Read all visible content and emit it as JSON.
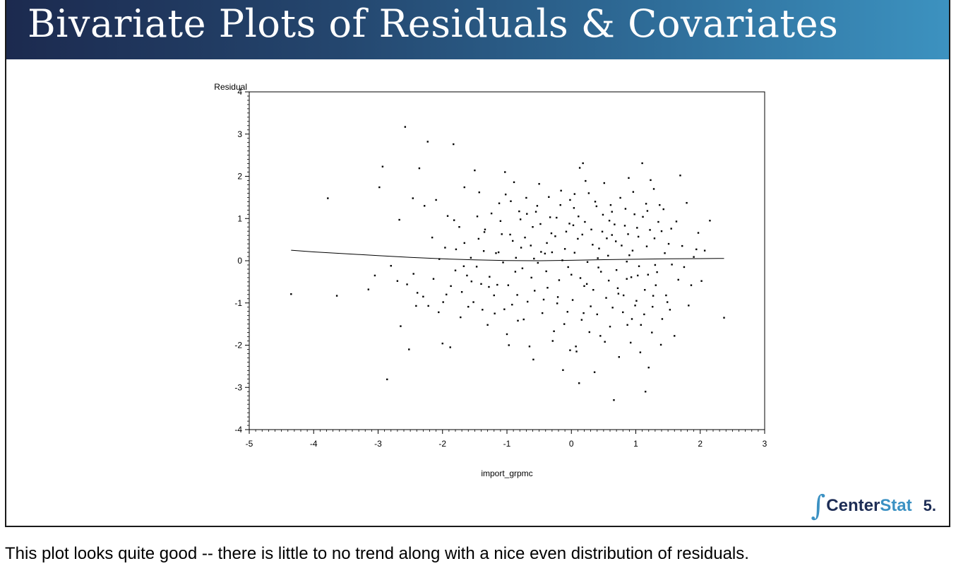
{
  "slide": {
    "title": "Bivariate Plots of Residuals & Covariates",
    "logo": {
      "prefix": "∫",
      "part1": "Center",
      "part2": "Stat"
    },
    "page_number": "5.",
    "caption": "This plot looks quite good -- there is little to no trend along with a nice even distribution of residuals.",
    "colors": {
      "title_gradient_start": "#1c2a4f",
      "title_gradient_end": "#3c92c0",
      "logo_dark": "#1d2d55",
      "logo_light": "#3b91c3"
    }
  },
  "chart_data": {
    "type": "scatter",
    "xlabel": "import_grpmc",
    "ylabel": "Residual",
    "xlim": [
      -5,
      3
    ],
    "ylim": [
      -4,
      4
    ],
    "xticks": [
      -5,
      -4,
      -3,
      -2,
      -1,
      0,
      1,
      2,
      3
    ],
    "yticks": [
      -4,
      -3,
      -2,
      -1,
      0,
      1,
      2,
      3,
      4
    ],
    "grid": false,
    "legend": "none",
    "points": [
      [
        -4.35,
        -0.79
      ],
      [
        -3.78,
        1.48
      ],
      [
        -3.64,
        -0.83
      ],
      [
        -3.15,
        -0.68
      ],
      [
        -2.98,
        1.74
      ],
      [
        -2.93,
        2.23
      ],
      [
        -2.86,
        -2.81
      ],
      [
        -2.67,
        0.97
      ],
      [
        -2.65,
        -1.55
      ],
      [
        -2.58,
        3.17
      ],
      [
        -2.52,
        -2.1
      ],
      [
        -2.46,
        1.48
      ],
      [
        -2.39,
        -0.76
      ],
      [
        -2.36,
        2.19
      ],
      [
        -2.23,
        2.82
      ],
      [
        -2.16,
        0.55
      ],
      [
        -2.1,
        1.44
      ],
      [
        -2.06,
        -1.22
      ],
      [
        -2.0,
        -1.96
      ],
      [
        -1.96,
        0.31
      ],
      [
        -1.94,
        -0.8
      ],
      [
        -1.88,
        -2.05
      ],
      [
        -1.83,
        2.76
      ],
      [
        -1.8,
        -0.23
      ],
      [
        -1.74,
        0.8
      ],
      [
        -1.7,
        -0.74
      ],
      [
        -1.66,
        1.74
      ],
      [
        -1.6,
        -1.09
      ],
      [
        -1.55,
        -0.49
      ],
      [
        -1.5,
        2.14
      ],
      [
        -1.46,
        1.05
      ],
      [
        -1.43,
        1.62
      ],
      [
        -1.4,
        -0.55
      ],
      [
        -1.34,
        0.74
      ],
      [
        -1.3,
        -1.52
      ],
      [
        -1.2,
        -0.82
      ],
      [
        -1.17,
        0.18
      ],
      [
        -1.12,
        1.36
      ],
      [
        -1.08,
        0.63
      ],
      [
        -1.03,
        2.1
      ],
      [
        -1.0,
        -1.74
      ],
      [
        -0.97,
        -2.0
      ],
      [
        -0.94,
        1.41
      ],
      [
        -0.91,
        0.47
      ],
      [
        -0.87,
        -0.26
      ],
      [
        -0.84,
        -0.81
      ],
      [
        -0.81,
        1.17
      ],
      [
        -0.78,
        0.31
      ],
      [
        -0.74,
        -1.39
      ],
      [
        -0.7,
        1.49
      ],
      [
        -0.65,
        -2.03
      ],
      [
        -0.6,
        0.8
      ],
      [
        -0.57,
        -0.71
      ],
      [
        -0.53,
        1.3
      ],
      [
        -0.5,
        1.82
      ],
      [
        -0.47,
        0.21
      ],
      [
        -0.43,
        -0.92
      ],
      [
        -0.39,
        -0.25
      ],
      [
        -0.35,
        1.51
      ],
      [
        -0.31,
        0.65
      ],
      [
        -0.27,
        -1.67
      ],
      [
        -0.23,
        1.02
      ],
      [
        -0.19,
        -0.46
      ],
      [
        -0.16,
        1.66
      ],
      [
        -0.13,
        -2.59
      ],
      [
        -0.1,
        0.28
      ],
      [
        -0.06,
        -1.21
      ],
      [
        -0.03,
        0.88
      ],
      [
        0.0,
        -0.33
      ],
      [
        0.04,
        1.25
      ],
      [
        0.08,
        -2.15
      ],
      [
        0.1,
        0.52
      ],
      [
        0.13,
        2.2
      ],
      [
        0.16,
        -1.4
      ],
      [
        0.18,
        2.31
      ],
      [
        0.21,
        0.92
      ],
      [
        0.24,
        -0.55
      ],
      [
        0.27,
        1.6
      ],
      [
        0.3,
        -1.08
      ],
      [
        0.33,
        0.38
      ],
      [
        0.36,
        -2.64
      ],
      [
        0.39,
        1.29
      ],
      [
        0.42,
        -0.16
      ],
      [
        0.45,
        -1.78
      ],
      [
        0.48,
        0.69
      ],
      [
        0.51,
        1.84
      ],
      [
        0.54,
        -0.88
      ],
      [
        0.57,
        0.12
      ],
      [
        0.6,
        -1.56
      ],
      [
        0.63,
        1.16
      ],
      [
        0.66,
        -3.3
      ],
      [
        0.69,
        0.46
      ],
      [
        0.72,
        -0.65
      ],
      [
        0.76,
        1.49
      ],
      [
        0.8,
        -1.22
      ],
      [
        0.83,
        0.83
      ],
      [
        0.86,
        -0.43
      ],
      [
        0.89,
        1.96
      ],
      [
        0.92,
        -1.94
      ],
      [
        0.95,
        0.24
      ],
      [
        0.98,
        1.1
      ],
      [
        1.01,
        -0.95
      ],
      [
        1.04,
        0.57
      ],
      [
        1.07,
        -2.17
      ],
      [
        1.1,
        2.31
      ],
      [
        1.13,
        -1.27
      ],
      [
        1.16,
        1.35
      ],
      [
        1.19,
        -0.33
      ],
      [
        1.22,
        0.73
      ],
      [
        1.25,
        -1.7
      ],
      [
        1.28,
        1.7
      ],
      [
        1.31,
        -0.58
      ],
      [
        1.35,
        0.92
      ],
      [
        1.39,
        -1.99
      ],
      [
        1.43,
        1.22
      ],
      [
        1.47,
        -0.82
      ],
      [
        1.51,
        0.4
      ],
      [
        1.56,
        -0.09
      ],
      [
        1.63,
        0.93
      ],
      [
        1.69,
        2.02
      ],
      [
        1.75,
        -0.15
      ],
      [
        1.82,
        -1.06
      ],
      [
        1.9,
        0.09
      ],
      [
        1.97,
        0.66
      ],
      [
        2.02,
        -0.48
      ],
      [
        2.07,
        0.24
      ],
      [
        2.15,
        0.95
      ],
      [
        2.37,
        -1.35
      ],
      [
        -2.8,
        -0.12
      ],
      [
        -2.7,
        -0.48
      ],
      [
        -2.45,
        -0.31
      ],
      [
        -2.3,
        -0.85
      ],
      [
        -2.22,
        -1.07
      ],
      [
        -2.14,
        -0.43
      ],
      [
        -2.05,
        0.04
      ],
      [
        -1.99,
        -0.98
      ],
      [
        -1.92,
        1.06
      ],
      [
        -1.87,
        -0.6
      ],
      [
        -1.79,
        0.27
      ],
      [
        -1.72,
        -1.34
      ],
      [
        -1.66,
        0.42
      ],
      [
        -1.62,
        -0.35
      ],
      [
        -1.56,
        0.07
      ],
      [
        -1.52,
        -0.98
      ],
      [
        -1.47,
        -0.14
      ],
      [
        -1.44,
        0.52
      ],
      [
        -1.38,
        -1.16
      ],
      [
        -1.36,
        0.23
      ],
      [
        -1.27,
        -0.38
      ],
      [
        -1.24,
        1.12
      ],
      [
        -1.19,
        -1.25
      ],
      [
        -1.15,
        -0.57
      ],
      [
        -1.1,
        0.94
      ],
      [
        -1.06,
        -0.04
      ],
      [
        -1.02,
        1.57
      ],
      [
        -0.98,
        -0.58
      ],
      [
        -0.95,
        0.62
      ],
      [
        -0.92,
        -1.04
      ],
      [
        -0.89,
        1.86
      ],
      [
        -0.86,
        0.07
      ],
      [
        -0.83,
        -1.42
      ],
      [
        -0.79,
        0.98
      ],
      [
        -0.76,
        -0.18
      ],
      [
        -0.72,
        0.55
      ],
      [
        -0.68,
        -0.97
      ],
      [
        -0.63,
        0.36
      ],
      [
        -0.59,
        -2.34
      ],
      [
        -0.55,
        1.16
      ],
      [
        -0.52,
        -0.05
      ],
      [
        -0.48,
        0.87
      ],
      [
        -0.45,
        -1.24
      ],
      [
        -0.41,
        0.17
      ],
      [
        -0.37,
        -0.64
      ],
      [
        -0.33,
        1.03
      ],
      [
        -0.29,
        -1.9
      ],
      [
        -0.25,
        0.58
      ],
      [
        -0.21,
        -0.86
      ],
      [
        -0.17,
        1.32
      ],
      [
        -0.14,
        0.01
      ],
      [
        -0.11,
        -1.5
      ],
      [
        -0.08,
        0.69
      ],
      [
        -0.05,
        -0.15
      ],
      [
        -0.02,
        1.44
      ],
      [
        0.02,
        -0.93
      ],
      [
        0.05,
        0.19
      ],
      [
        0.07,
        -2.03
      ],
      [
        0.11,
        1.05
      ],
      [
        0.14,
        -0.41
      ],
      [
        0.17,
        0.62
      ],
      [
        0.19,
        -1.24
      ],
      [
        0.22,
        1.89
      ],
      [
        0.25,
        -0.03
      ],
      [
        0.28,
        -1.69
      ],
      [
        0.31,
        0.74
      ],
      [
        0.34,
        -0.69
      ],
      [
        0.37,
        1.4
      ],
      [
        0.4,
        -1.27
      ],
      [
        0.43,
        0.29
      ],
      [
        0.46,
        -0.26
      ],
      [
        0.49,
        1.09
      ],
      [
        0.52,
        -1.92
      ],
      [
        0.55,
        0.53
      ],
      [
        0.58,
        -0.47
      ],
      [
        0.61,
        1.32
      ],
      [
        0.64,
        -1.11
      ],
      [
        0.67,
        0.86
      ],
      [
        0.7,
        -0.22
      ],
      [
        0.74,
        -2.28
      ],
      [
        0.78,
        0.36
      ],
      [
        0.81,
        -0.82
      ],
      [
        0.84,
        1.23
      ],
      [
        0.87,
        -1.52
      ],
      [
        0.9,
        0.13
      ],
      [
        0.93,
        -0.39
      ],
      [
        0.96,
        1.63
      ],
      [
        0.99,
        -1.06
      ],
      [
        1.02,
        0.78
      ],
      [
        1.05,
        -0.13
      ],
      [
        1.08,
        -1.52
      ],
      [
        1.11,
        1.04
      ],
      [
        1.14,
        -0.69
      ],
      [
        1.17,
        0.34
      ],
      [
        1.2,
        -2.53
      ],
      [
        1.23,
        1.91
      ],
      [
        1.26,
        -1.09
      ],
      [
        1.29,
        0.53
      ],
      [
        1.33,
        -0.27
      ],
      [
        1.37,
        1.32
      ],
      [
        1.41,
        -1.38
      ],
      [
        1.45,
        0.18
      ],
      [
        1.49,
        -0.98
      ],
      [
        1.55,
        0.76
      ],
      [
        1.6,
        -1.78
      ],
      [
        1.66,
        -0.45
      ],
      [
        1.72,
        0.35
      ],
      [
        1.79,
        1.37
      ],
      [
        1.86,
        -0.58
      ],
      [
        1.94,
        0.27
      ],
      [
        -3.05,
        -0.35
      ],
      [
        -2.55,
        -0.56
      ],
      [
        -2.41,
        -1.07
      ],
      [
        -2.28,
        1.3
      ],
      [
        -1.82,
        0.96
      ],
      [
        -1.67,
        -0.13
      ],
      [
        -1.35,
        0.68
      ],
      [
        -1.28,
        -0.62
      ],
      [
        -1.13,
        0.2
      ],
      [
        -1.04,
        -1.15
      ],
      [
        -0.69,
        1.11
      ],
      [
        -0.62,
        -0.4
      ],
      [
        -0.38,
        0.42
      ],
      [
        -0.22,
        -1.01
      ],
      [
        0.03,
        0.84
      ],
      [
        0.2,
        -0.6
      ],
      [
        0.41,
        0.06
      ],
      [
        0.59,
        0.95
      ],
      [
        0.73,
        -0.78
      ],
      [
        0.88,
        0.63
      ],
      [
        1.03,
        -0.35
      ],
      [
        1.18,
        1.18
      ],
      [
        1.27,
        -0.83
      ],
      [
        1.4,
        0.7
      ],
      [
        1.53,
        -1.16
      ],
      [
        1.15,
        -3.1
      ],
      [
        0.12,
        -2.9
      ],
      [
        -0.02,
        -2.12
      ],
      [
        0.94,
        -1.38
      ],
      [
        0.05,
        1.58
      ],
      [
        1.3,
        -0.1
      ],
      [
        0.86,
        -0.02
      ],
      [
        0.63,
        0.61
      ],
      [
        -0.3,
        0.2
      ],
      [
        -0.58,
        0.05
      ]
    ],
    "trend": [
      [
        -4.35,
        0.25
      ],
      [
        -4.0,
        0.21
      ],
      [
        -3.5,
        0.165
      ],
      [
        -3.0,
        0.12
      ],
      [
        -2.5,
        0.08
      ],
      [
        -2.0,
        0.045
      ],
      [
        -1.5,
        0.02
      ],
      [
        -1.0,
        0.005
      ],
      [
        -0.5,
        0.0
      ],
      [
        0.0,
        0.01
      ],
      [
        0.5,
        0.025
      ],
      [
        1.0,
        0.035
      ],
      [
        1.5,
        0.045
      ],
      [
        2.0,
        0.05
      ],
      [
        2.37,
        0.055
      ]
    ]
  }
}
